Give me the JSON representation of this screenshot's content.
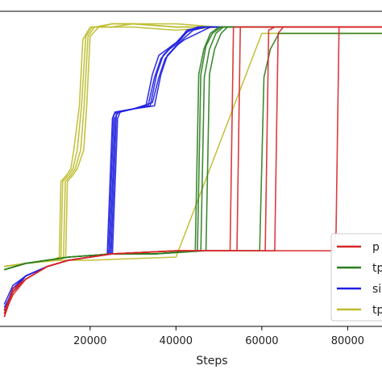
{
  "chart_data": {
    "type": "line",
    "title": "",
    "xlabel": "Steps",
    "ylabel": "",
    "xlim": [
      -1000,
      88000
    ],
    "ylim": [
      0,
      1
    ],
    "x_ticks": [
      20000,
      40000,
      60000,
      80000
    ],
    "x_tick_labels": [
      "20000",
      "40000",
      "60000",
      "80000"
    ],
    "grid": false,
    "legend_placement": "lower-right",
    "legend": [
      {
        "label": "p",
        "color": "#d62728"
      },
      {
        "label": "tp",
        "color": "#2a7d1e"
      },
      {
        "label": "si",
        "color": "#1f1fe0"
      },
      {
        "label": "tp",
        "color": "#bdbd2f"
      }
    ],
    "series": [
      {
        "group": 3,
        "color": "#bdbd2f",
        "x": [
          0,
          5000,
          11000,
          12800,
          13200,
          14500,
          15500,
          16200,
          17500,
          18300,
          20000,
          25000,
          30000,
          40000,
          50000,
          60000,
          70000,
          80000,
          88000
        ],
        "y": [
          0.19,
          0.2,
          0.21,
          0.22,
          0.46,
          0.48,
          0.5,
          0.56,
          0.7,
          0.91,
          0.95,
          0.95,
          0.95,
          0.94,
          0.95,
          0.95,
          0.95,
          0.95,
          0.95
        ]
      },
      {
        "group": 3,
        "color": "#bdbd2f",
        "x": [
          0,
          5000,
          11500,
          13200,
          13600,
          15000,
          16000,
          17000,
          18000,
          19000,
          20500,
          25000,
          30000,
          40000,
          50000,
          60000,
          70000,
          80000,
          88000
        ],
        "y": [
          0.19,
          0.2,
          0.21,
          0.22,
          0.46,
          0.48,
          0.5,
          0.56,
          0.7,
          0.92,
          0.95,
          0.95,
          0.96,
          0.95,
          0.95,
          0.95,
          0.95,
          0.95,
          0.95
        ]
      },
      {
        "group": 3,
        "color": "#bdbd2f",
        "x": [
          0,
          5000,
          12000,
          13800,
          14200,
          15500,
          16500,
          17800,
          18600,
          19500,
          21000,
          25000,
          30000,
          40000,
          50000,
          60000,
          70000,
          80000,
          88000
        ],
        "y": [
          0.19,
          0.2,
          0.21,
          0.22,
          0.46,
          0.48,
          0.5,
          0.56,
          0.7,
          0.92,
          0.95,
          0.96,
          0.96,
          0.95,
          0.95,
          0.95,
          0.95,
          0.95,
          0.95
        ]
      },
      {
        "group": 3,
        "color": "#bdbd2f",
        "x": [
          0,
          5000,
          12500,
          14300,
          14700,
          16000,
          17000,
          18500,
          19200,
          20000,
          22000,
          25000,
          30000,
          40000,
          50000,
          60000,
          70000,
          80000,
          88000
        ],
        "y": [
          0.19,
          0.2,
          0.21,
          0.22,
          0.46,
          0.48,
          0.5,
          0.56,
          0.7,
          0.92,
          0.95,
          0.96,
          0.96,
          0.96,
          0.95,
          0.95,
          0.95,
          0.95,
          0.95
        ]
      },
      {
        "group": 3,
        "color": "#bdbd2f",
        "x": [
          0,
          5000,
          10000,
          20000,
          40000,
          60000,
          80000,
          88000
        ],
        "y": [
          0.19,
          0.2,
          0.21,
          0.21,
          0.22,
          0.93,
          0.93,
          0.93
        ]
      },
      {
        "group": 2,
        "color": "#1f1fe0",
        "x": [
          0,
          2000,
          5000,
          10000,
          15000,
          20000,
          24000,
          25200,
          25800,
          30000,
          33000,
          34500,
          36000,
          38000,
          40000,
          42000,
          45000,
          50000,
          60000,
          70000,
          80000,
          88000
        ],
        "y": [
          0.05,
          0.12,
          0.16,
          0.19,
          0.21,
          0.22,
          0.23,
          0.66,
          0.68,
          0.69,
          0.7,
          0.8,
          0.86,
          0.88,
          0.9,
          0.93,
          0.95,
          0.95,
          0.95,
          0.95,
          0.95,
          0.95
        ]
      },
      {
        "group": 2,
        "color": "#1f1fe0",
        "x": [
          0,
          2000,
          5000,
          10000,
          15000,
          20000,
          24300,
          25500,
          26100,
          30000,
          33500,
          35000,
          36500,
          38500,
          40500,
          42500,
          45500,
          50000,
          60000,
          70000,
          80000,
          88000
        ],
        "y": [
          0.06,
          0.11,
          0.16,
          0.19,
          0.21,
          0.22,
          0.23,
          0.67,
          0.68,
          0.69,
          0.7,
          0.79,
          0.85,
          0.88,
          0.9,
          0.94,
          0.95,
          0.95,
          0.95,
          0.95,
          0.95,
          0.95
        ]
      },
      {
        "group": 2,
        "color": "#1f1fe0",
        "x": [
          0,
          2000,
          5000,
          10000,
          15000,
          20000,
          24600,
          25800,
          26400,
          30000,
          34000,
          35500,
          37000,
          39000,
          41000,
          43000,
          46000,
          50000,
          60000,
          70000,
          80000,
          88000
        ],
        "y": [
          0.04,
          0.12,
          0.16,
          0.19,
          0.21,
          0.22,
          0.23,
          0.66,
          0.68,
          0.69,
          0.7,
          0.8,
          0.86,
          0.89,
          0.91,
          0.94,
          0.95,
          0.95,
          0.95,
          0.95,
          0.95,
          0.95
        ]
      },
      {
        "group": 2,
        "color": "#1f1fe0",
        "x": [
          0,
          2000,
          5000,
          10000,
          15000,
          20000,
          24900,
          26100,
          26700,
          30000,
          34500,
          36000,
          37500,
          39500,
          41500,
          44000,
          47000,
          50000,
          60000,
          70000,
          80000,
          88000
        ],
        "y": [
          0.07,
          0.13,
          0.16,
          0.19,
          0.21,
          0.22,
          0.23,
          0.67,
          0.68,
          0.69,
          0.71,
          0.79,
          0.85,
          0.88,
          0.91,
          0.94,
          0.95,
          0.95,
          0.95,
          0.95,
          0.95,
          0.95
        ]
      },
      {
        "group": 2,
        "color": "#1f1fe0",
        "x": [
          0,
          2000,
          5000,
          10000,
          15000,
          20000,
          25200,
          26400,
          27000,
          30000,
          35000,
          36500,
          38000,
          40000,
          42000,
          45000,
          48000,
          52000,
          60000,
          70000,
          80000,
          88000
        ],
        "y": [
          0.05,
          0.12,
          0.16,
          0.19,
          0.21,
          0.22,
          0.23,
          0.66,
          0.68,
          0.69,
          0.7,
          0.8,
          0.86,
          0.89,
          0.91,
          0.93,
          0.95,
          0.95,
          0.95,
          0.95,
          0.95,
          0.95
        ]
      },
      {
        "group": 1,
        "color": "#2a7d1e",
        "x": [
          0,
          5000,
          15000,
          25000,
          35000,
          44500,
          45300,
          46500,
          48000,
          50000,
          60000,
          70000,
          80000,
          88000
        ],
        "y": [
          0.18,
          0.2,
          0.22,
          0.23,
          0.23,
          0.24,
          0.8,
          0.88,
          0.93,
          0.95,
          0.95,
          0.95,
          0.95,
          0.95
        ]
      },
      {
        "group": 1,
        "color": "#2a7d1e",
        "x": [
          0,
          5000,
          15000,
          25000,
          35000,
          45000,
          45800,
          47000,
          48500,
          50500,
          60000,
          70000,
          80000,
          88000
        ],
        "y": [
          0.18,
          0.2,
          0.22,
          0.23,
          0.23,
          0.24,
          0.8,
          0.89,
          0.93,
          0.95,
          0.95,
          0.95,
          0.95,
          0.95
        ]
      },
      {
        "group": 1,
        "color": "#2a7d1e",
        "x": [
          0,
          5000,
          15000,
          25000,
          35000,
          45800,
          46600,
          47800,
          49300,
          51000,
          60000,
          70000,
          80000,
          88000
        ],
        "y": [
          0.18,
          0.2,
          0.22,
          0.23,
          0.23,
          0.24,
          0.79,
          0.88,
          0.93,
          0.95,
          0.95,
          0.95,
          0.95,
          0.95
        ]
      },
      {
        "group": 1,
        "color": "#2a7d1e",
        "x": [
          0,
          5000,
          15000,
          25000,
          35000,
          47000,
          47800,
          49000,
          50500,
          52000,
          60000,
          70000,
          80000,
          88000
        ],
        "y": [
          0.18,
          0.2,
          0.22,
          0.23,
          0.23,
          0.24,
          0.8,
          0.88,
          0.93,
          0.95,
          0.95,
          0.95,
          0.95,
          0.95
        ]
      },
      {
        "group": 1,
        "color": "#2a7d1e",
        "x": [
          0,
          5000,
          15000,
          25000,
          35000,
          45000,
          55000,
          59500,
          60500,
          62000,
          64000,
          70000,
          80000,
          88000
        ],
        "y": [
          0.18,
          0.2,
          0.22,
          0.23,
          0.23,
          0.24,
          0.24,
          0.24,
          0.79,
          0.88,
          0.93,
          0.93,
          0.93,
          0.93
        ]
      },
      {
        "group": 0,
        "color": "#d62728",
        "x": [
          0,
          2000,
          5000,
          10000,
          15000,
          25000,
          40000,
          50000,
          52600,
          53400,
          54000,
          60000,
          70000,
          80000,
          88000
        ],
        "y": [
          0.03,
          0.11,
          0.15,
          0.19,
          0.21,
          0.23,
          0.24,
          0.24,
          0.24,
          0.95,
          0.95,
          0.95,
          0.95,
          0.95,
          0.95
        ]
      },
      {
        "group": 0,
        "color": "#d62728",
        "x": [
          0,
          2000,
          5000,
          10000,
          15000,
          25000,
          40000,
          50000,
          54200,
          55000,
          56000,
          60000,
          70000,
          80000,
          88000
        ],
        "y": [
          0.04,
          0.12,
          0.15,
          0.19,
          0.21,
          0.23,
          0.24,
          0.24,
          0.24,
          0.95,
          0.95,
          0.95,
          0.95,
          0.95,
          0.95
        ]
      },
      {
        "group": 0,
        "color": "#d62728",
        "x": [
          0,
          2000,
          5000,
          10000,
          15000,
          25000,
          40000,
          50000,
          58000,
          60800,
          61600,
          63000,
          70000,
          80000,
          88000
        ],
        "y": [
          0.05,
          0.11,
          0.15,
          0.19,
          0.21,
          0.23,
          0.24,
          0.24,
          0.24,
          0.24,
          0.94,
          0.95,
          0.95,
          0.95,
          0.95
        ]
      },
      {
        "group": 0,
        "color": "#d62728",
        "x": [
          0,
          2000,
          5000,
          10000,
          15000,
          25000,
          40000,
          50000,
          60000,
          63000,
          63800,
          65000,
          70000,
          80000,
          88000
        ],
        "y": [
          0.04,
          0.1,
          0.15,
          0.19,
          0.21,
          0.23,
          0.24,
          0.24,
          0.24,
          0.24,
          0.93,
          0.95,
          0.95,
          0.95,
          0.95
        ]
      },
      {
        "group": 0,
        "color": "#d62728",
        "x": [
          0,
          2000,
          5000,
          10000,
          15000,
          25000,
          40000,
          50000,
          60000,
          70000,
          76500,
          77300,
          78000,
          80000,
          88000
        ],
        "y": [
          0.03,
          0.11,
          0.15,
          0.19,
          0.21,
          0.23,
          0.24,
          0.24,
          0.24,
          0.24,
          0.24,
          0.3,
          0.95,
          0.95,
          0.95
        ]
      }
    ]
  }
}
